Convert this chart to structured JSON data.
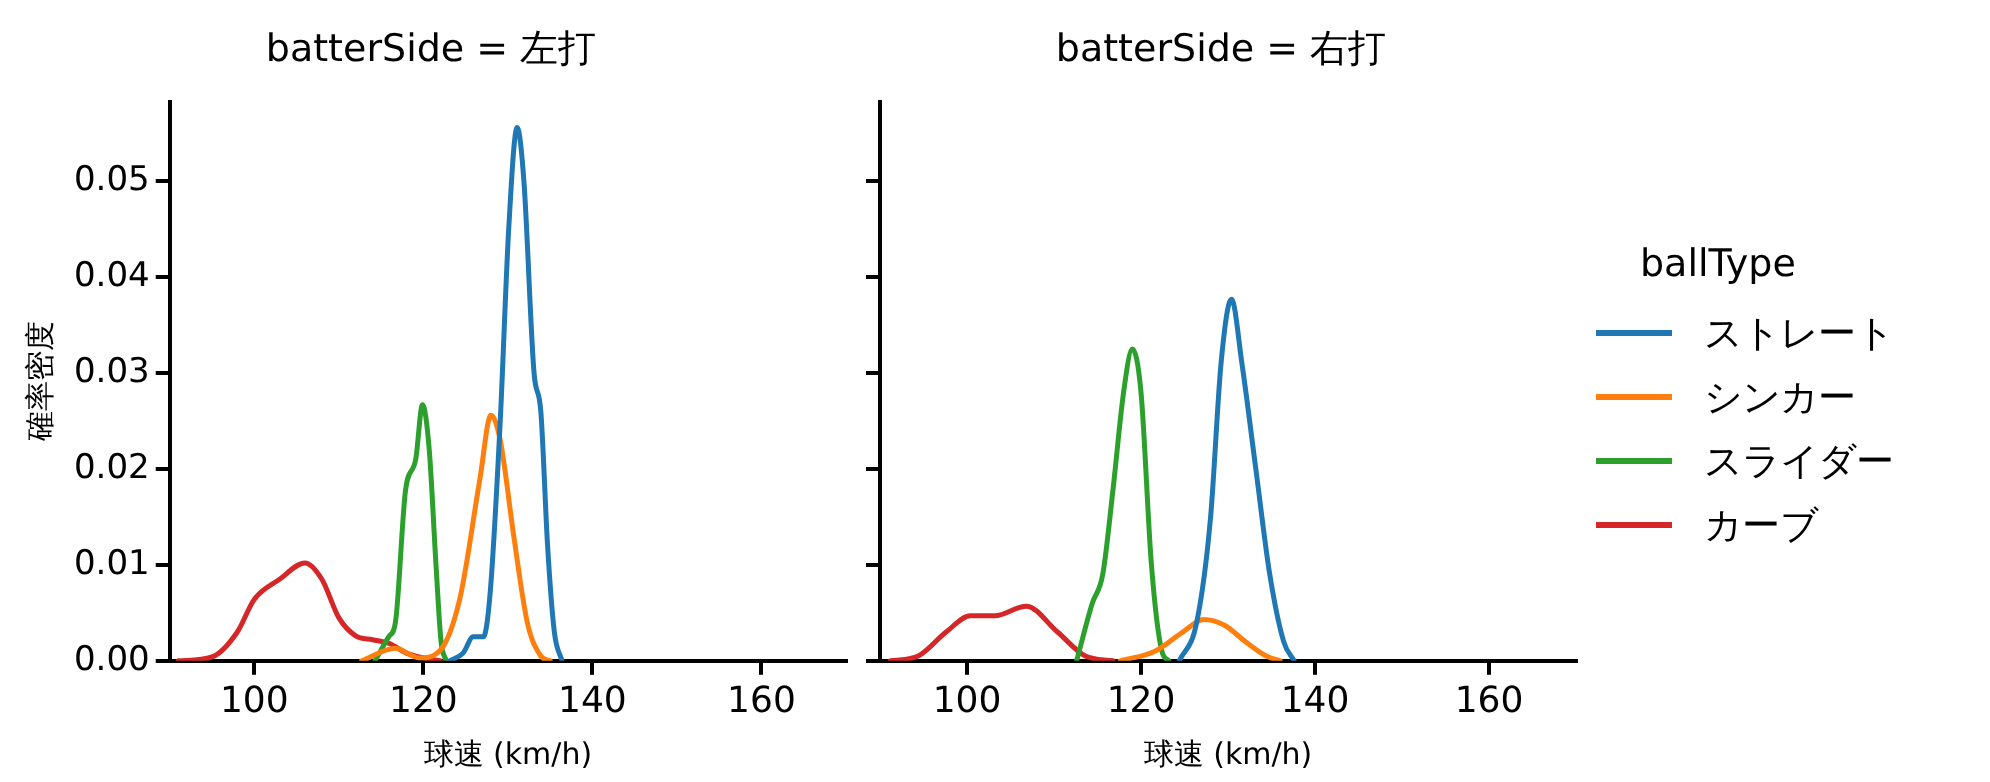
{
  "chart_data": [
    {
      "type": "line",
      "title": "batterSide = 左打",
      "xlabel": "球速 (km/h)",
      "ylabel": "確率密度",
      "xlim": [
        90,
        170
      ],
      "xticks": [
        100,
        120,
        140,
        160
      ],
      "ylim": [
        0,
        0.0583
      ],
      "yticks": [
        {
          "value": 0,
          "label": "0.00"
        },
        {
          "value": 0.01,
          "label": "0.01"
        },
        {
          "value": 0.02,
          "label": "0.02"
        },
        {
          "value": 0.03,
          "label": "0.03"
        },
        {
          "value": 0.04,
          "label": "0.04"
        },
        {
          "value": 0.05,
          "label": "0.05"
        }
      ],
      "grid": false,
      "legend": false,
      "marker": "none",
      "series": [
        {
          "color": "#1f77b4",
          "x": [
            123.1,
            124.7,
            125.9,
            127.1,
            127.9,
            129.1,
            130.1,
            131.1,
            131.9,
            133.1,
            133.9,
            134.7,
            135.5,
            136.4
          ],
          "values": [
            0,
            0.0008,
            0.0025,
            0.0025,
            0.007,
            0.025,
            0.045,
            0.0556,
            0.05,
            0.03,
            0.026,
            0.012,
            0.003,
            0
          ]
        },
        {
          "color": "#ff7f0e",
          "x": [
            112.7,
            116.7,
            119.5,
            121.9,
            124.3,
            126.7,
            128,
            129.1,
            130.7,
            132.3,
            133.9,
            135
          ],
          "values": [
            0,
            0.0013,
            0.0003,
            0.001,
            0.0064,
            0.019,
            0.0256,
            0.023,
            0.013,
            0.004,
            0.0005,
            0
          ]
        },
        {
          "color": "#2ca02c",
          "x": [
            114.3,
            115.9,
            116.7,
            117.9,
            119.1,
            119.9,
            120.7,
            121.5,
            122.1,
            122.7
          ],
          "values": [
            0,
            0.0025,
            0.004,
            0.0178,
            0.021,
            0.0267,
            0.022,
            0.01,
            0.002,
            0
          ]
        },
        {
          "color": "#d62728",
          "x": [
            91,
            95,
            98,
            100,
            103,
            106,
            108,
            110,
            112,
            114,
            116,
            118,
            120,
            122
          ],
          "values": [
            0,
            0.0004,
            0.003,
            0.0064,
            0.0085,
            0.0102,
            0.0085,
            0.0045,
            0.0026,
            0.0022,
            0.0018,
            0.0008,
            0.0003,
            0
          ]
        }
      ]
    },
    {
      "type": "line",
      "title": "batterSide = 右打",
      "xlabel": "球速 (km/h)",
      "legend_title": "ballType",
      "xlim": [
        90,
        170
      ],
      "xticks": [
        100,
        120,
        140,
        160
      ],
      "ylim": [
        0,
        0.0583
      ],
      "yticks": [
        0,
        0.01,
        0.02,
        0.03,
        0.04,
        0.05
      ],
      "tick_labels": "x",
      "grid": false,
      "legend": "right",
      "marker": "none",
      "series": [
        {
          "name": "ストレート",
          "color": "#1f77b4",
          "x": [
            124.4,
            126.4,
            128,
            129.2,
            130.4,
            131.6,
            133.2,
            134.8,
            136.4,
            137.6
          ],
          "values": [
            0,
            0.004,
            0.015,
            0.031,
            0.0377,
            0.031,
            0.02,
            0.009,
            0.002,
            0
          ]
        },
        {
          "name": "シンカー",
          "color": "#ff7f0e",
          "x": [
            117.6,
            121.6,
            124.8,
            127.2,
            129.6,
            132,
            134.4,
            136
          ],
          "values": [
            0,
            0.001,
            0.003,
            0.0043,
            0.0037,
            0.002,
            0.0005,
            0
          ]
        },
        {
          "name": "スライダー",
          "color": "#2ca02c",
          "x": [
            112.6,
            114.4,
            115.6,
            116.8,
            118,
            119,
            120,
            121.2,
            122.4,
            123.2
          ],
          "values": [
            0,
            0.006,
            0.009,
            0.018,
            0.028,
            0.0325,
            0.028,
            0.01,
            0.001,
            0
          ]
        },
        {
          "name": "カーブ",
          "color": "#d62728",
          "x": [
            91.2,
            94.4,
            97.6,
            100.4,
            103.2,
            106.8,
            110.4,
            113.6,
            116.8
          ],
          "values": [
            0,
            0.0005,
            0.003,
            0.0047,
            0.0047,
            0.0057,
            0.003,
            0.0005,
            0
          ]
        }
      ]
    }
  ]
}
